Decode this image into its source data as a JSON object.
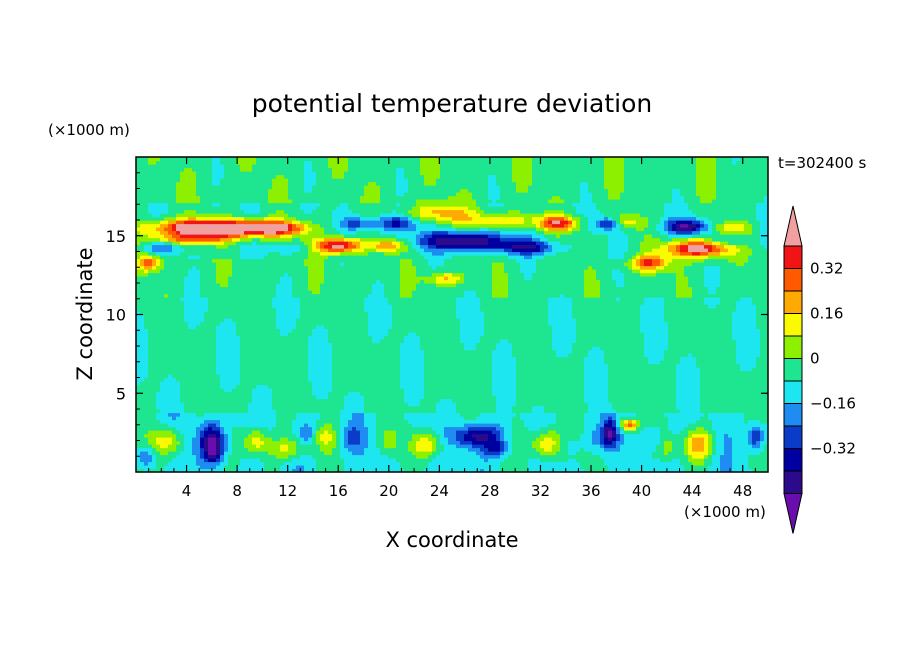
{
  "chart_data": {
    "type": "heatmap",
    "title": "potential temperature deviation",
    "time_label": "t=302400 s",
    "xlabel": "X coordinate",
    "ylabel": "Z coordinate",
    "x_unit": "(×1000 m)",
    "y_unit": "(×1000 m)",
    "xlim": [
      0,
      50
    ],
    "ylim": [
      0,
      20
    ],
    "x_ticks": [
      "4",
      "8",
      "12",
      "16",
      "20",
      "24",
      "28",
      "32",
      "36",
      "40",
      "44",
      "48"
    ],
    "y_ticks": [
      "5",
      "10",
      "15"
    ],
    "colorbar": {
      "labels": [
        "0.32",
        "0.16",
        "0",
        "−0.16",
        "−0.32"
      ],
      "levels": [
        -0.48,
        -0.4,
        -0.32,
        -0.24,
        -0.16,
        -0.08,
        0,
        0.08,
        0.16,
        0.24,
        0.32,
        0.4,
        0.48
      ],
      "colors": [
        "#6a0dad",
        "#2b0a8c",
        "#0000a0",
        "#0a3cc8",
        "#1e8cf0",
        "#1ee6f0",
        "#1ee690",
        "#8cf000",
        "#fafa00",
        "#ffaa00",
        "#ff5a00",
        "#f01414",
        "#f0a0a0"
      ]
    }
  }
}
